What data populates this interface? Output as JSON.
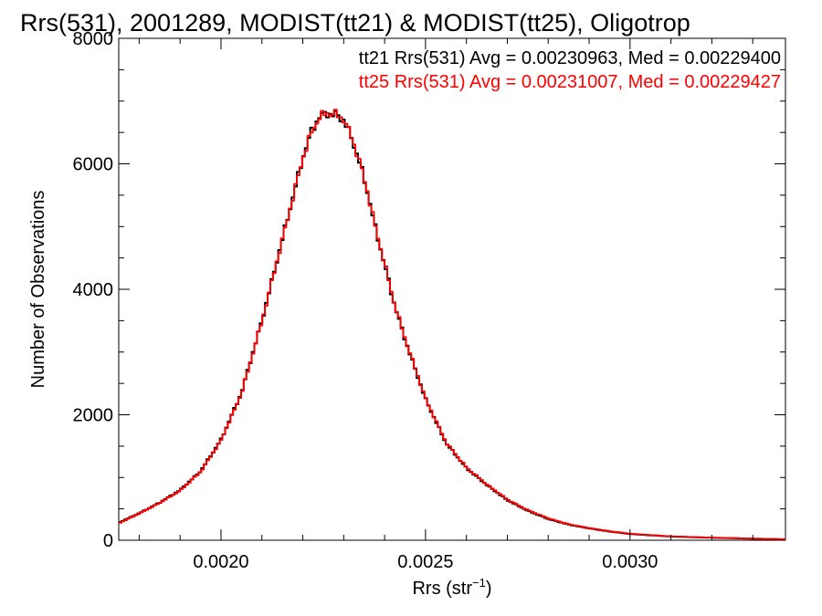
{
  "chart_data": {
    "type": "line",
    "title": "Rrs(531), 2001289, MODIST(tt21) & MODIST(tt25), Oligotrop",
    "xlabel_main": "Rrs (str",
    "xlabel_sup": "−1",
    "xlabel_close": ")",
    "ylabel": "Number of Observations",
    "xlim": [
      0.00175,
      0.00338
    ],
    "ylim": [
      0,
      8000
    ],
    "xticks": [
      0.002,
      0.0025,
      0.003
    ],
    "xtick_labels": [
      "0.0020",
      "0.0025",
      "0.0030"
    ],
    "yticks": [
      0,
      2000,
      4000,
      6000,
      8000
    ],
    "ytick_labels": [
      "0",
      "2000",
      "4000",
      "6000",
      "8000"
    ],
    "grid": false,
    "legend_position": "top-right",
    "series": [
      {
        "name": "tt21 Rrs(531) Avg = 0.00230963, Med = 0.00229400",
        "color": "#000000",
        "x": [
          0.00175,
          0.0018,
          0.00185,
          0.0019,
          0.00195,
          0.002,
          0.00205,
          0.0021,
          0.00215,
          0.0022,
          0.00222,
          0.00224,
          0.00226,
          0.00228,
          0.0023,
          0.00232,
          0.00234,
          0.00236,
          0.00238,
          0.0024,
          0.00242,
          0.00245,
          0.0025,
          0.00255,
          0.0026,
          0.00265,
          0.0027,
          0.00275,
          0.0028,
          0.00285,
          0.0029,
          0.00295,
          0.003,
          0.0031,
          0.0032,
          0.0033,
          0.00338
        ],
        "y": [
          280,
          430,
          600,
          800,
          1100,
          1600,
          2350,
          3500,
          4800,
          6100,
          6500,
          6750,
          6800,
          6780,
          6700,
          6400,
          6000,
          5500,
          4900,
          4400,
          3850,
          3200,
          2250,
          1550,
          1150,
          880,
          640,
          470,
          340,
          250,
          190,
          140,
          100,
          60,
          40,
          25,
          15
        ]
      },
      {
        "name": "tt25 Rrs(531) Avg = 0.00231007, Med = 0.00229427",
        "color": "#ff0000",
        "x": [
          0.00175,
          0.0018,
          0.00185,
          0.0019,
          0.00195,
          0.002,
          0.00205,
          0.0021,
          0.00215,
          0.0022,
          0.00222,
          0.00224,
          0.00226,
          0.00228,
          0.0023,
          0.00232,
          0.00234,
          0.00236,
          0.00238,
          0.0024,
          0.00242,
          0.00245,
          0.0025,
          0.00255,
          0.0026,
          0.00265,
          0.0027,
          0.00275,
          0.0028,
          0.00285,
          0.0029,
          0.00295,
          0.003,
          0.0031,
          0.0032,
          0.0033,
          0.00338
        ],
        "y": [
          270,
          425,
          595,
          790,
          1090,
          1590,
          2340,
          3490,
          4790,
          6090,
          6480,
          6740,
          6810,
          6790,
          6710,
          6410,
          6010,
          5510,
          4910,
          4410,
          3860,
          3210,
          2260,
          1560,
          1160,
          890,
          650,
          480,
          350,
          255,
          195,
          145,
          105,
          62,
          42,
          26,
          16
        ]
      }
    ]
  }
}
